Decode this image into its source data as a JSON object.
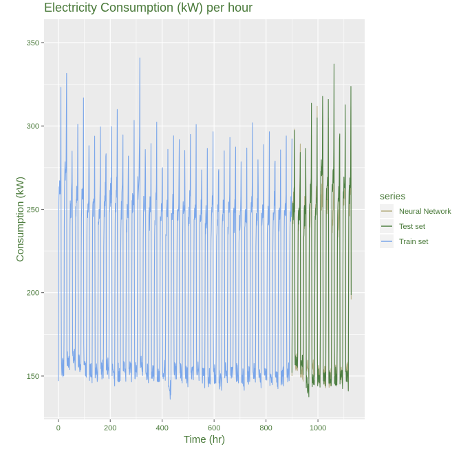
{
  "chart_data": {
    "type": "line",
    "title": "Electricity Consumption (kW) per hour",
    "xlabel": "Time (hr)",
    "ylabel": "Consumption (kW)",
    "xlim": [
      -55,
      1180
    ],
    "ylim": [
      124,
      364
    ],
    "x_ticks": [
      0,
      200,
      400,
      600,
      800,
      1000
    ],
    "y_ticks": [
      150,
      200,
      250,
      300,
      350
    ],
    "grid": true,
    "legend": {
      "title": "series",
      "position": "right"
    },
    "colors": {
      "title": "#4a7a3a",
      "axis_text": "#4a7a3a",
      "panel_bg": "#ebebeb",
      "grid": "#ffffff"
    },
    "series": [
      {
        "name": "Neural Network",
        "color": "#b5ad80",
        "x_range": [
          900,
          1128
        ],
        "cycle_hours": 21.7,
        "peaks": [
          305,
          303,
          300,
          305,
          312,
          318,
          322,
          305,
          300,
          316,
          320
        ],
        "troughs": [
          150,
          145,
          148,
          146,
          143,
          142,
          141,
          144,
          143,
          145,
          142
        ]
      },
      {
        "name": "Test set",
        "color": "#4e7f43",
        "x_range": [
          900,
          1128
        ],
        "cycle_hours": 21.7,
        "peaks": [
          304,
          297,
          311,
          327,
          305,
          355,
          335,
          342,
          328,
          336,
          333
        ],
        "troughs": [
          152,
          149,
          137,
          141,
          141,
          143,
          140,
          142,
          141,
          144,
          141
        ]
      },
      {
        "name": "Train set",
        "color": "#7aa6ea",
        "x_range": [
          0,
          900
        ],
        "cycle_hours": 21.7,
        "peaks": [
          332,
          349,
          305,
          312,
          317,
          316,
          309,
          303,
          312,
          320,
          318,
          309,
          303,
          315,
          341,
          313,
          304,
          306,
          302,
          306,
          301,
          306,
          308,
          306,
          301,
          298,
          301,
          300,
          302,
          303,
          300,
          301,
          300,
          297,
          302,
          306,
          303,
          300,
          308,
          304,
          301,
          307
        ],
        "troughs": [
          147,
          152,
          153,
          150,
          147,
          145,
          144,
          146,
          147,
          146,
          144,
          145,
          146,
          146,
          148,
          145,
          143,
          144,
          146,
          134,
          145,
          144,
          143,
          144,
          145,
          142,
          141,
          143,
          140,
          144,
          146,
          144,
          141,
          143,
          144,
          142,
          145,
          142,
          141,
          142,
          144,
          140
        ]
      }
    ]
  }
}
